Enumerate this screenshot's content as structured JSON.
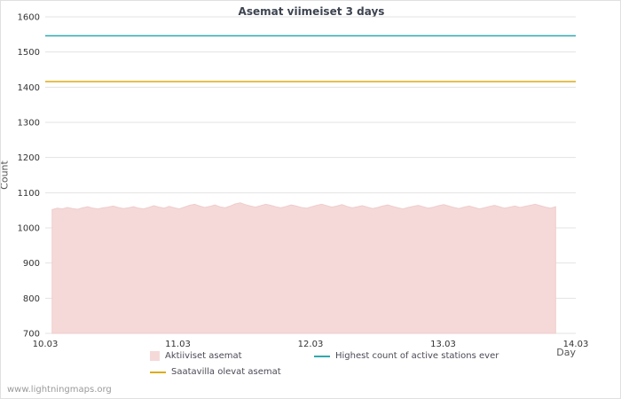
{
  "watermark": "www.lightningmaps.org",
  "chart_data": {
    "type": "area",
    "title": "Asemat viimeiset 3 days",
    "xlabel": "Day",
    "ylabel": "Count",
    "ylim": [
      700,
      1600
    ],
    "y_ticks": [
      700,
      800,
      900,
      1000,
      1100,
      1200,
      1300,
      1400,
      1500,
      1600
    ],
    "x_ticks": [
      "10.03",
      "11.03",
      "12.03",
      "13.03",
      "14.03"
    ],
    "grid": "horizontal",
    "grid_color": "#e3e3e3",
    "area_series": {
      "name": "Aktiiviset asemat",
      "color": "#f5d9d9",
      "edge_color": "#efcccc",
      "baseline": 700,
      "start_frac": 0.013,
      "end_frac": 0.962,
      "values": [
        1052,
        1056,
        1054,
        1058,
        1055,
        1053,
        1057,
        1060,
        1056,
        1054,
        1057,
        1059,
        1062,
        1058,
        1055,
        1057,
        1060,
        1056,
        1054,
        1058,
        1063,
        1059,
        1056,
        1061,
        1057,
        1054,
        1059,
        1064,
        1067,
        1062,
        1058,
        1061,
        1065,
        1060,
        1057,
        1062,
        1068,
        1071,
        1066,
        1062,
        1059,
        1063,
        1067,
        1064,
        1060,
        1057,
        1061,
        1065,
        1062,
        1058,
        1056,
        1060,
        1064,
        1067,
        1063,
        1059,
        1062,
        1066,
        1061,
        1057,
        1060,
        1063,
        1059,
        1055,
        1058,
        1062,
        1065,
        1061,
        1057,
        1054,
        1058,
        1061,
        1064,
        1060,
        1056,
        1059,
        1063,
        1066,
        1062,
        1058,
        1055,
        1059,
        1062,
        1058,
        1054,
        1057,
        1061,
        1064,
        1060,
        1056,
        1059,
        1062,
        1058,
        1061,
        1064,
        1067,
        1063,
        1059,
        1056,
        1060
      ]
    },
    "hlines": [
      {
        "name": "Highest count of active stations ever",
        "color": "#2fa9ad",
        "value": 1546
      },
      {
        "name": "Saatavilla olevat asemat",
        "color": "#dcab14",
        "value": 1416
      }
    ],
    "legend": [
      {
        "label": "Aktiiviset asemat",
        "swatch": "area",
        "color": "#f5d9d9"
      },
      {
        "label": "Highest count of active stations ever",
        "swatch": "line",
        "color": "#2fa9ad"
      },
      {
        "label": "Saatavilla olevat asemat",
        "swatch": "line",
        "color": "#dcab14"
      }
    ]
  }
}
